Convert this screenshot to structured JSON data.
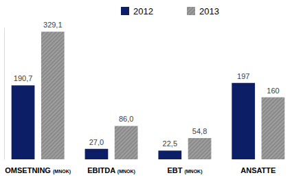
{
  "chart_data": {
    "type": "bar",
    "categories": [
      "OMSETNING (MNOK)",
      "EBITDA (MNOK)",
      "EBT (MNOK)",
      "ANSATTE"
    ],
    "series": [
      {
        "name": "2012",
        "color": "#0c1f66",
        "values": [
          190.7,
          27.0,
          22.5,
          197
        ],
        "value_labels": [
          "190,7",
          "27,0",
          "22,5",
          "197"
        ]
      },
      {
        "name": "2013",
        "color": "#8c8c8c",
        "values": [
          329.1,
          86.0,
          54.8,
          160
        ],
        "value_labels": [
          "329,1",
          "86,0",
          "54,8",
          "160"
        ]
      }
    ],
    "ylim": [
      0,
      340
    ],
    "yticks": [
      0
    ],
    "grid": false,
    "legend": "top",
    "data_labels": true,
    "tick_labels": "x"
  }
}
